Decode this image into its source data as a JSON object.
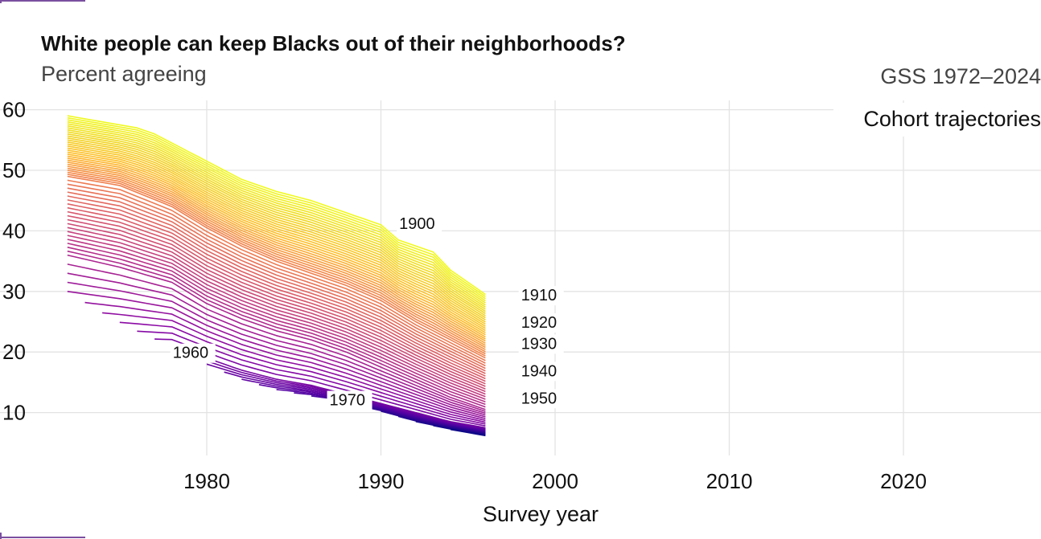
{
  "title": "White people can keep Blacks out of their neighborhoods?",
  "subtitle": "Percent agreeing",
  "source": "GSS 1972–2024",
  "annotation": "Cohort trajectories",
  "colors": {
    "cohort_oldest": "#f0f921",
    "cohort_youngest": "#2a0d8e",
    "grid": "#e3e3e3",
    "corner_marks": "#7b4fa0"
  },
  "chart_data": {
    "type": "line",
    "xlabel": "Survey year",
    "ylabel": "",
    "xlim": [
      1971,
      2028
    ],
    "ylim": [
      4,
      61
    ],
    "x_ticks": [
      1980,
      1990,
      2000,
      2010,
      2020
    ],
    "y_ticks": [
      10,
      20,
      30,
      40,
      50,
      60
    ],
    "legend": "none",
    "grid": true,
    "palette": "plasma",
    "cohort_range": [
      1900,
      1976
    ],
    "cohort_labels": [
      {
        "label": "1900",
        "year": 1991,
        "value": 40.3
      },
      {
        "label": "1910",
        "year": 1998,
        "value": 28.5
      },
      {
        "label": "1920",
        "year": 1998,
        "value": 24.0
      },
      {
        "label": "1930",
        "year": 1998,
        "value": 20.5
      },
      {
        "label": "1940",
        "year": 1998,
        "value": 16.0
      },
      {
        "label": "1950",
        "year": 1998,
        "value": 11.5
      },
      {
        "label": "1960",
        "year": 1978,
        "value": 19.0
      },
      {
        "label": "1970",
        "year": 1987,
        "value": 11.2
      }
    ],
    "series": [
      {
        "cohort": 1900,
        "x": [
          1972,
          1974,
          1976,
          1977,
          1978,
          1980,
          1982,
          1984,
          1986,
          1988,
          1990,
          1991,
          1993,
          1994,
          1996
        ],
        "values": [
          59.0,
          58.0,
          57.0,
          56.0,
          54.5,
          51.5,
          48.5,
          46.5,
          45.0,
          43.0,
          41.0,
          38.5,
          36.5,
          33.5,
          29.5
        ]
      },
      {
        "cohort": 1930,
        "x": [
          1972,
          1975,
          1978,
          1980,
          1982,
          1984,
          1986,
          1988,
          1990,
          1992,
          1994,
          1996
        ],
        "values": [
          49.0,
          47.5,
          44.0,
          40.5,
          37.5,
          35.0,
          33.0,
          31.0,
          28.5,
          25.0,
          22.0,
          19.0
        ]
      },
      {
        "cohort": 1950,
        "x": [
          1972,
          1975,
          1978,
          1980,
          1982,
          1984,
          1986,
          1988,
          1990,
          1992,
          1994,
          1996
        ],
        "values": [
          36.0,
          34.0,
          31.5,
          28.0,
          25.5,
          23.5,
          22.0,
          20.0,
          17.5,
          15.0,
          12.5,
          10.5
        ]
      },
      {
        "cohort": 1960,
        "x": [
          1978,
          1980,
          1982,
          1984,
          1986,
          1988,
          1990,
          1992,
          1994,
          1996
        ],
        "values": [
          21.0,
          19.0,
          17.0,
          15.5,
          14.5,
          13.0,
          11.5,
          10.0,
          8.5,
          7.5
        ]
      },
      {
        "cohort": 1976,
        "x": [
          1988,
          1990,
          1992,
          1994,
          1996
        ],
        "values": [
          11.0,
          9.8,
          8.3,
          7.2,
          6.2
        ]
      }
    ]
  }
}
